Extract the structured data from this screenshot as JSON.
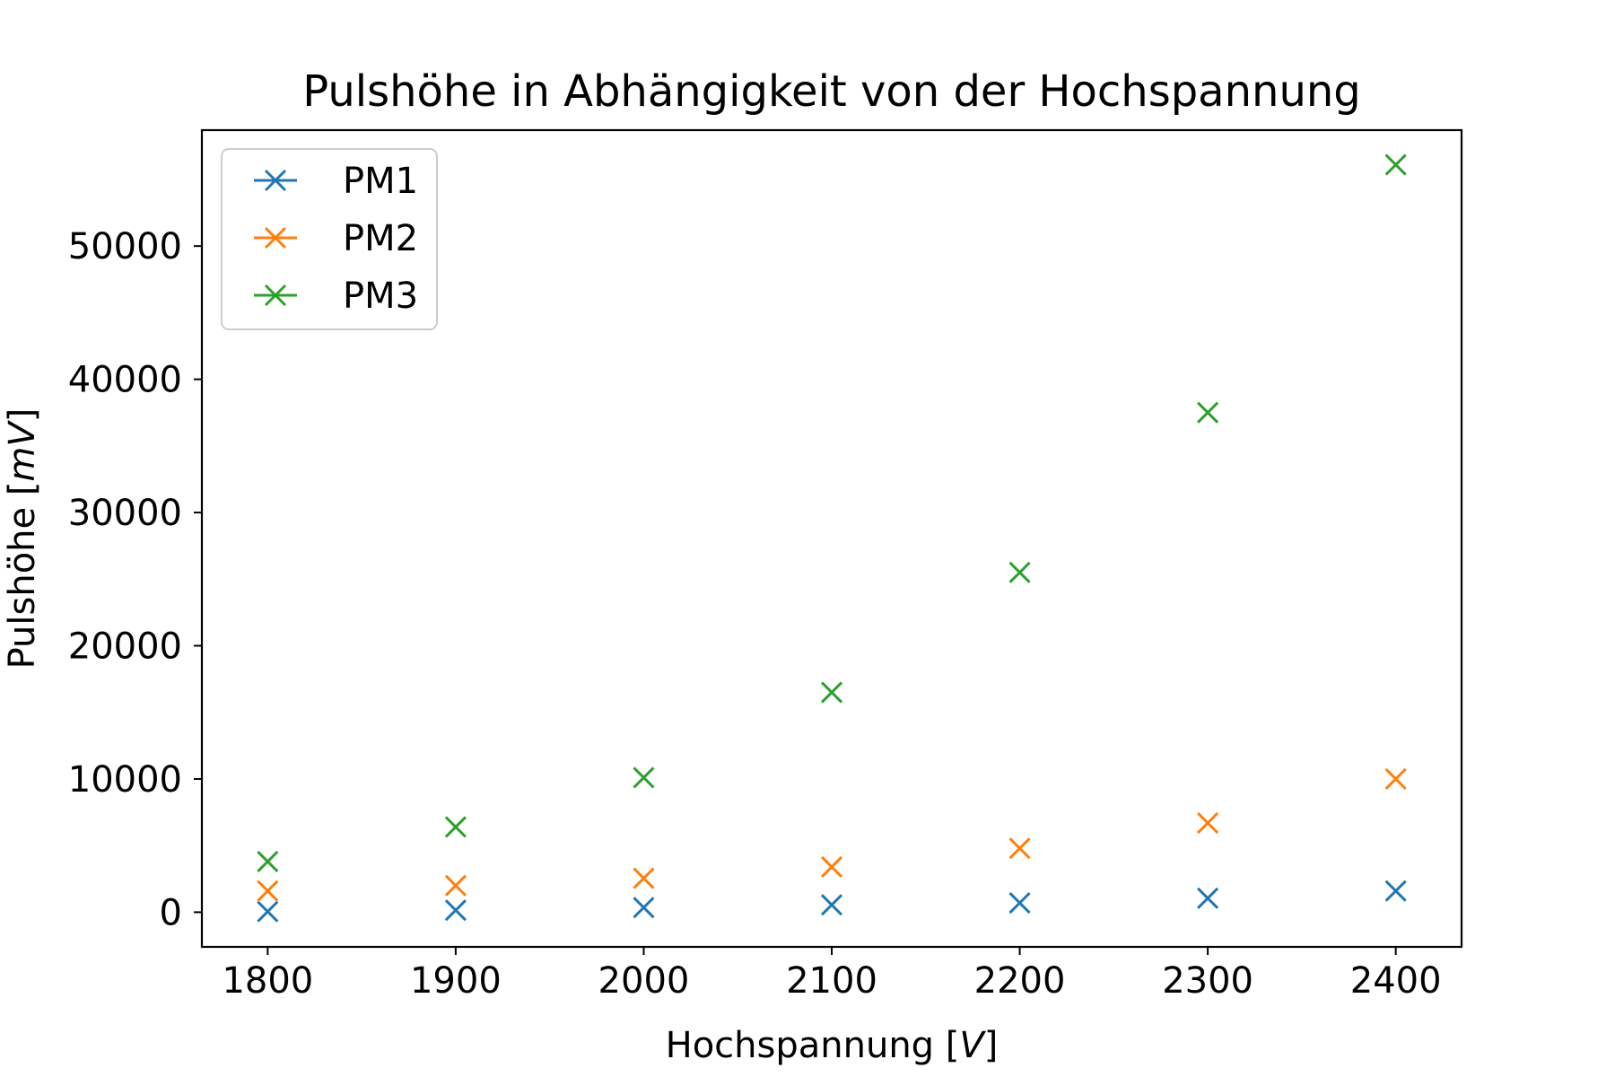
{
  "chart_data": {
    "type": "scatter",
    "title": "Pulshöhe in Abhängigkeit von der Hochspannung",
    "xlabel": {
      "prefix": "Hochspannung [",
      "unit": "V",
      "suffix": "]"
    },
    "ylabel": {
      "prefix": "Pulshöhe [",
      "unit": "mV",
      "suffix": "]"
    },
    "xlim": [
      1765,
      2435
    ],
    "ylim": [
      -2600,
      58700
    ],
    "xticks": [
      1800,
      1900,
      2000,
      2100,
      2200,
      2300,
      2400
    ],
    "yticks": [
      0,
      10000,
      20000,
      30000,
      40000,
      50000
    ],
    "grid": false,
    "legend_position": "top-left",
    "marker": "x",
    "x": [
      1800,
      1900,
      2000,
      2100,
      2200,
      2300,
      2400
    ],
    "series": [
      {
        "name": "PM1",
        "color": "#1f77b4",
        "values": [
          50,
          150,
          350,
          550,
          700,
          1050,
          1600
        ]
      },
      {
        "name": "PM2",
        "color": "#ff7f0e",
        "values": [
          1600,
          2000,
          2550,
          3400,
          4800,
          6700,
          10000
        ]
      },
      {
        "name": "PM3",
        "color": "#2ca02c",
        "values": [
          3800,
          6400,
          10100,
          16500,
          25500,
          37500,
          56100
        ]
      }
    ]
  }
}
